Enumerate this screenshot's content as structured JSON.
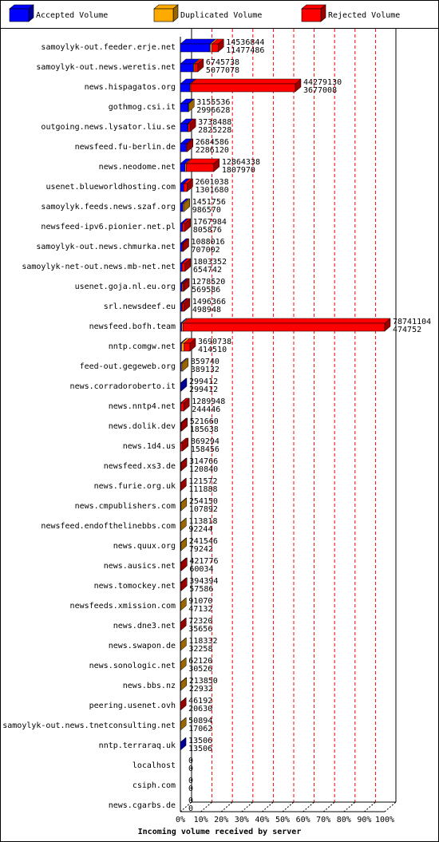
{
  "chart_data": {
    "type": "bar",
    "orientation": "horizontal",
    "stacked": true,
    "title": "Incoming volume received by server",
    "categories": [
      "samoylyk-out.feeder.erje.net",
      "samoylyk-out.news.weretis.net",
      "news.hispagatos.org",
      "gothmog.csi.it",
      "outgoing.news.lysator.liu.se",
      "newsfeed.fu-berlin.de",
      "news.neodome.net",
      "usenet.blueworldhosting.com",
      "samoylyk.feeds.news.szaf.org",
      "newsfeed-ipv6.pionier.net.pl",
      "samoylyk-out.news.chmurka.net",
      "samoylyk-net-out.news.mb-net.net",
      "usenet.goja.nl.eu.org",
      "srl.newsdeef.eu",
      "newsfeed.bofh.team",
      "nntp.comgw.net",
      "feed-out.gegeweb.org",
      "news.corradoroberto.it",
      "news.nntp4.net",
      "news.dolik.dev",
      "news.1d4.us",
      "newsfeed.xs3.de",
      "news.furie.org.uk",
      "news.cmpublishers.com",
      "newsfeed.endofthelinebbs.com",
      "news.quux.org",
      "news.ausics.net",
      "news.tomockey.net",
      "newsfeeds.xmission.com",
      "news.dne3.net",
      "news.swapon.de",
      "news.sonologic.net",
      "news.bbs.nz",
      "peering.usenet.ovh",
      "samoylyk-out.news.tnetconsulting.net",
      "nntp.terraraq.uk",
      "localhost",
      "csiph.com",
      "news.cgarbs.de"
    ],
    "totals": [
      14536844,
      6745738,
      44279130,
      3155536,
      3738488,
      2684586,
      12864338,
      2601038,
      1451756,
      1767984,
      1088016,
      1803352,
      1278520,
      1496366,
      78741104,
      3690738,
      859740,
      299412,
      1289948,
      521660,
      869294,
      314766,
      121572,
      254150,
      113818,
      241546,
      421776,
      394394,
      91070,
      72320,
      118332,
      62120,
      213850,
      46192,
      50894,
      13506,
      0,
      0,
      0
    ],
    "series": [
      {
        "name": "Accepted Volume",
        "color": "#0000ff",
        "values": [
          11477486,
          5077078,
          3677008,
          2996628,
          2825228,
          2286120,
          1807970,
          1301680,
          986570,
          805876,
          707002,
          654742,
          569586,
          498948,
          474752,
          414510,
          389132,
          299412,
          244446,
          185638,
          158456,
          120840,
          111888,
          107892,
          92244,
          79242,
          60034,
          57586,
          47132,
          35656,
          32258,
          30526,
          22932,
          20630,
          17062,
          13506,
          0,
          0,
          0
        ]
      },
      {
        "name": "Duplicated Volume",
        "color": "#ffaa00",
        "values": [
          700000,
          400000,
          300000,
          158908,
          100000,
          0,
          400000,
          0,
          465186,
          0,
          0,
          0,
          300000,
          200000,
          500000,
          1000000,
          470608,
          0,
          0,
          0,
          0,
          0,
          0,
          146258,
          21574,
          162304,
          0,
          0,
          43938,
          0,
          86074,
          31594,
          190918,
          0,
          33832,
          0,
          0,
          0,
          0
        ]
      },
      {
        "name": "Rejected Volume",
        "color": "#ff0000",
        "values": [
          2359358,
          1268660,
          40302122,
          0,
          813260,
          398466,
          10656368,
          1299358,
          0,
          962108,
          381014,
          1148610,
          408934,
          797418,
          77766352,
          2276228,
          0,
          0,
          1045502,
          336022,
          710838,
          193926,
          9684,
          0,
          0,
          0,
          361742,
          336808,
          0,
          36664,
          0,
          0,
          0,
          25562,
          0,
          0,
          0,
          0,
          0
        ]
      }
    ],
    "xlim": [
      0,
      78741104
    ],
    "xticks": [
      {
        "value": 0,
        "label": "0%"
      },
      {
        "value": 7874110.4,
        "label": "10%"
      },
      {
        "value": 15748220.8,
        "label": "20%"
      },
      {
        "value": 23622331.2,
        "label": "30%"
      },
      {
        "value": 31496441.6,
        "label": "40%"
      },
      {
        "value": 39370552,
        "label": "50%"
      },
      {
        "value": 47244662.4,
        "label": "60%"
      },
      {
        "value": 55118772.8,
        "label": "70%"
      },
      {
        "value": 62992883.2,
        "label": "80%"
      },
      {
        "value": 70866993.6,
        "label": "90%"
      },
      {
        "value": 78741104,
        "label": "100%"
      }
    ],
    "grid": true
  }
}
